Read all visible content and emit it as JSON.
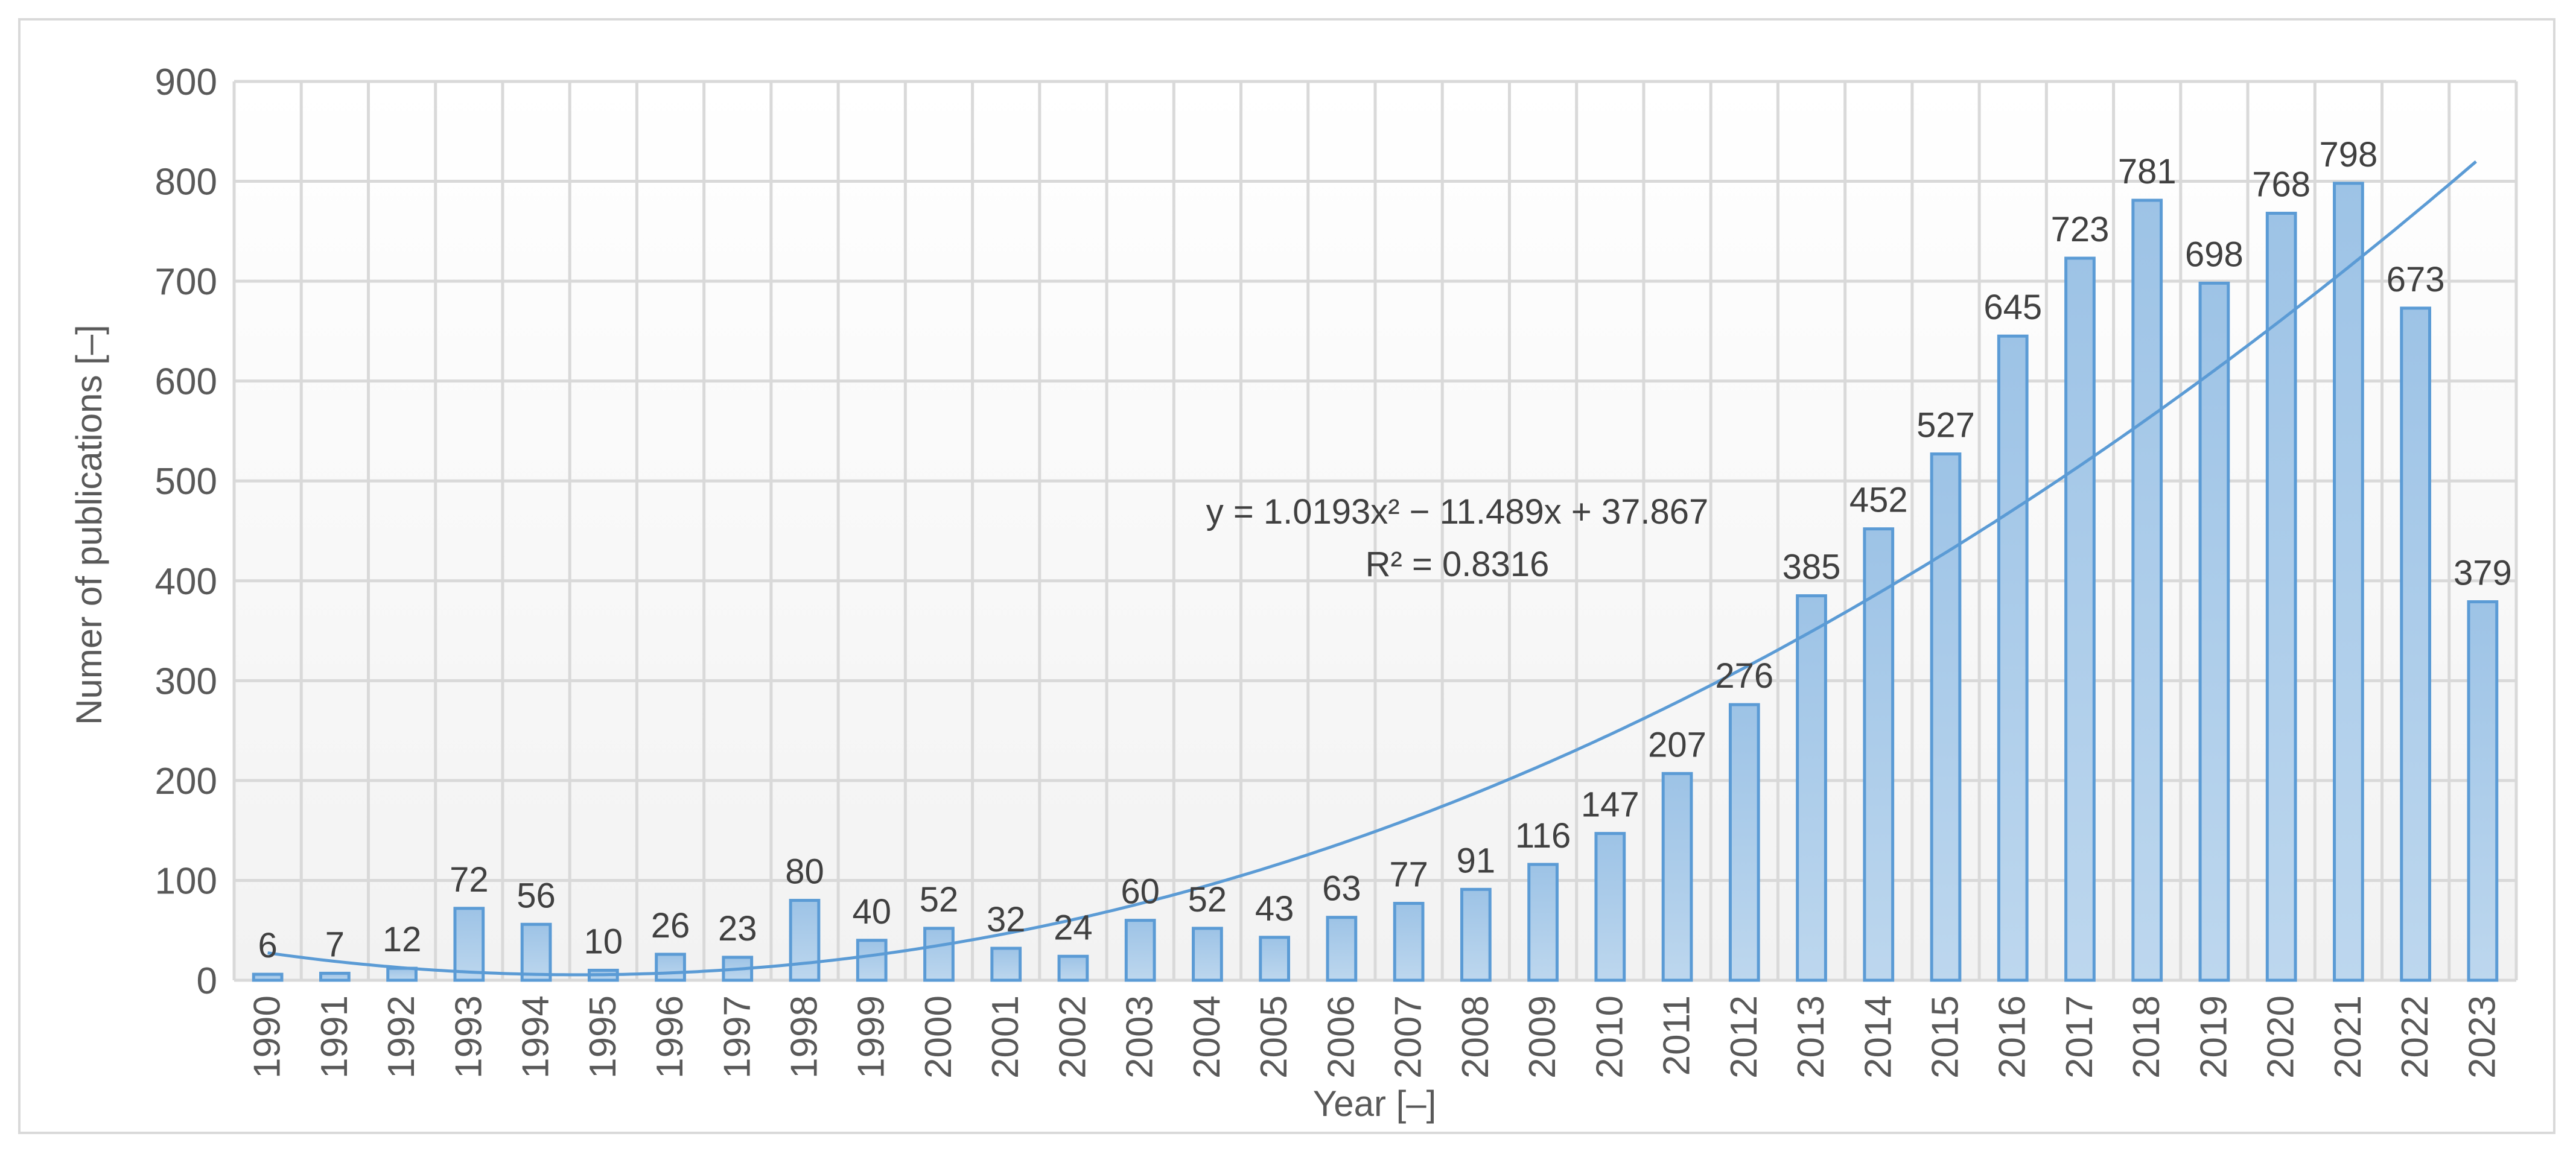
{
  "chart_data": {
    "type": "bar",
    "title": "",
    "xlabel": "Year [–]",
    "ylabel": "Numer of publications [–]",
    "ylim": [
      0,
      900
    ],
    "yticks": [
      0,
      100,
      200,
      300,
      400,
      500,
      600,
      700,
      800,
      900
    ],
    "grid": true,
    "categories": [
      "1990",
      "1991",
      "1992",
      "1993",
      "1994",
      "1995",
      "1996",
      "1997",
      "1998",
      "1999",
      "2000",
      "2001",
      "2002",
      "2003",
      "2004",
      "2005",
      "2006",
      "2007",
      "2008",
      "2009",
      "2010",
      "2011",
      "2012",
      "2013",
      "2014",
      "2015",
      "2016",
      "2017",
      "2018",
      "2019",
      "2020",
      "2021",
      "2022",
      "2023"
    ],
    "values": [
      6,
      7,
      12,
      72,
      56,
      10,
      26,
      23,
      80,
      40,
      52,
      32,
      24,
      60,
      52,
      43,
      63,
      77,
      91,
      116,
      147,
      207,
      276,
      385,
      452,
      527,
      645,
      723,
      781,
      698,
      768,
      798,
      673,
      379
    ],
    "trendline": {
      "type": "polynomial",
      "order": 2,
      "coefficients": {
        "a": 1.0193,
        "b": -11.489,
        "c": 37.867
      },
      "equation": "y = 1.0193x² − 11.489x + 37.867",
      "r_squared": "R² = 0.8316"
    },
    "colors": {
      "bar_fill_top": "#9dc3e6",
      "bar_fill_bottom": "#bdd7ee",
      "bar_stroke": "#5b9bd5",
      "trendline": "#5b9bd5",
      "grid": "#d9d9d9",
      "plot_bg_top": "#ffffff",
      "plot_bg_bottom": "#f2f2f2"
    }
  }
}
